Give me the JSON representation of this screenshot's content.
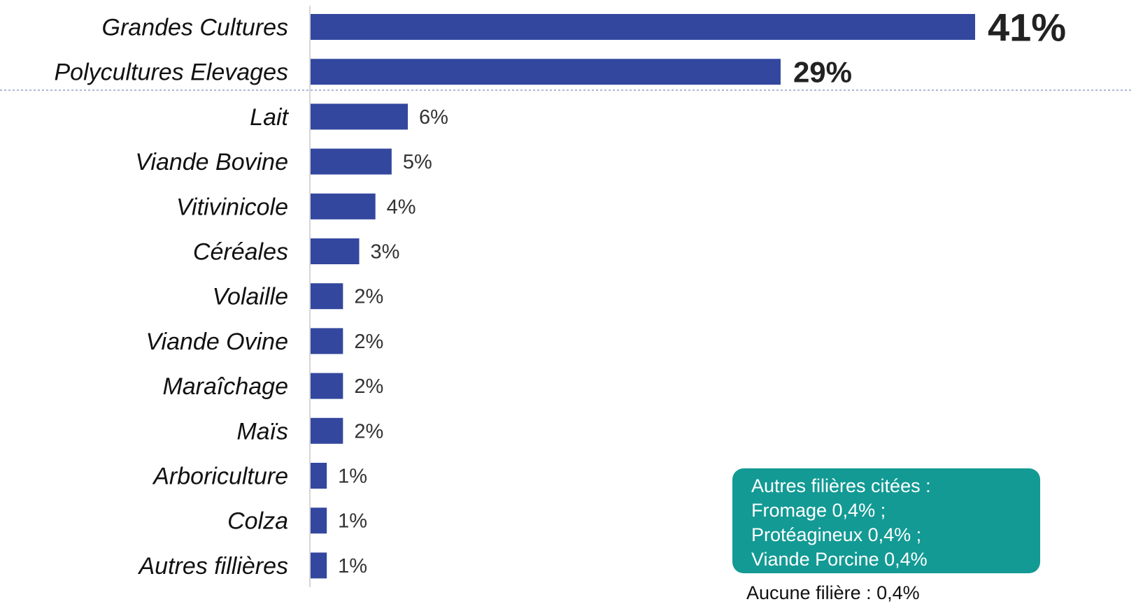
{
  "chart_data": {
    "type": "bar",
    "orientation": "horizontal",
    "categories": [
      "Grandes Cultures",
      "Polycultures Elevages",
      "Lait",
      "Viande Bovine",
      "Vitivinicole",
      "Céréales",
      "Volaille",
      "Viande Ovine",
      "Maraîchage",
      "Maïs",
      "Arboriculture",
      "Colza",
      "Autres fillières"
    ],
    "values": [
      41,
      29,
      6,
      5,
      4,
      3,
      2,
      2,
      2,
      2,
      1,
      1,
      1
    ],
    "value_labels": [
      "41%",
      "29%",
      "6%",
      "5%",
      "4%",
      "3%",
      "2%",
      "2%",
      "2%",
      "2%",
      "1%",
      "1%",
      "1%"
    ],
    "xlim": [
      0,
      41
    ],
    "grid": false,
    "bar_color": "#33479e",
    "separator_after_index": 1
  },
  "notes": {
    "box_lines": [
      "Autres filières citées :",
      "Fromage 0,4% ;",
      "Protéagineux 0,4% ;",
      "Viande Porcine 0,4%"
    ],
    "box_color": "#139a94",
    "no_sector": "Aucune filière : 0,4%"
  }
}
